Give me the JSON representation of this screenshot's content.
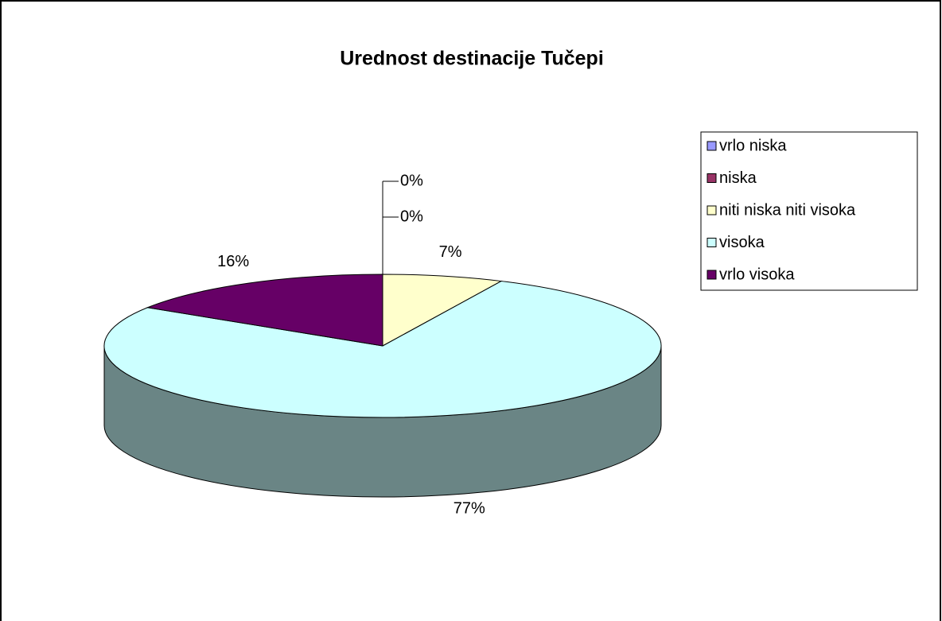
{
  "chart_data": {
    "type": "pie3d",
    "title": "Urednost destinacije Tučepi",
    "categories": [
      "vrlo niska",
      "niska",
      "niti niska niti visoka",
      "visoka",
      "vrlo visoka"
    ],
    "values": [
      0,
      0,
      7,
      77,
      16
    ],
    "value_labels": [
      "0%",
      "0%",
      "7%",
      "77%",
      "16%"
    ],
    "colors": [
      "#9999ff",
      "#993366",
      "#ffffcc",
      "#ccffff",
      "#660066"
    ],
    "legend": "right"
  }
}
